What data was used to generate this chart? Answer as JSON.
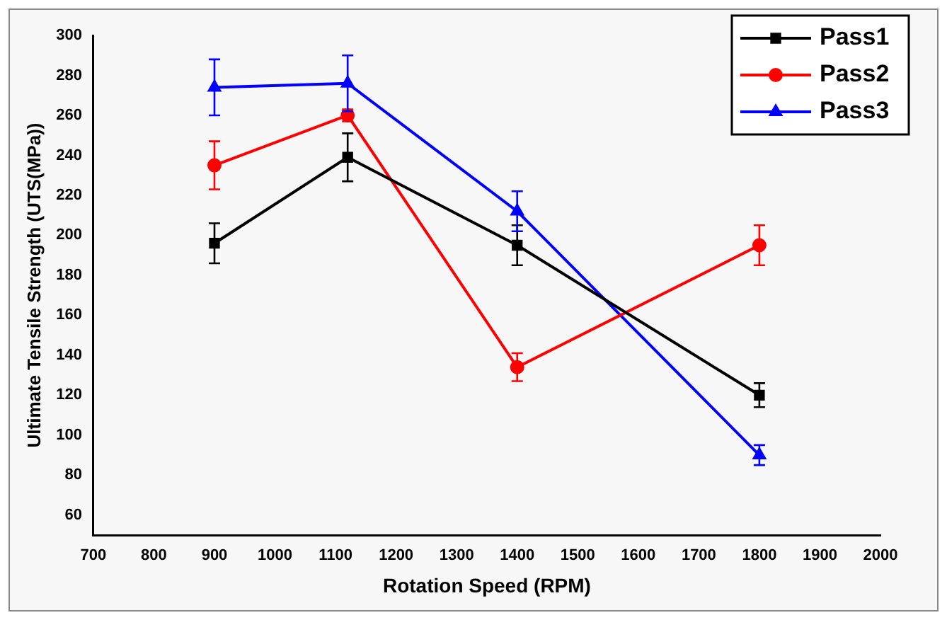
{
  "chart_data": {
    "type": "line",
    "xlabel": "Rotation Speed (RPM)",
    "ylabel": "Ultimate Tensile Strength (UTS(MPa))",
    "x": [
      900,
      1120,
      1400,
      1800
    ],
    "series": [
      {
        "name": "Pass1",
        "color": "#000000",
        "marker": "square",
        "values": [
          196,
          239,
          195,
          120
        ],
        "errors": [
          10,
          12,
          10,
          6
        ]
      },
      {
        "name": "Pass2",
        "color": "#ff0000",
        "marker": "circle",
        "values": [
          235,
          260,
          134,
          195
        ],
        "errors": [
          12,
          3,
          7,
          10
        ]
      },
      {
        "name": "Pass3",
        "color": "#0000ff",
        "marker": "triangle",
        "values": [
          274,
          276,
          212,
          90
        ],
        "errors": [
          14,
          14,
          10,
          5
        ]
      }
    ],
    "xlim": [
      700,
      2000
    ],
    "xticks": [
      700,
      800,
      900,
      1000,
      1100,
      1200,
      1300,
      1400,
      1500,
      1600,
      1700,
      1800,
      1900,
      2000
    ],
    "ylim": [
      50,
      300
    ],
    "yticks": [
      60,
      80,
      100,
      120,
      140,
      160,
      180,
      200,
      220,
      240,
      260,
      280,
      300
    ],
    "grid": false,
    "legend": "top right",
    "line_style": "solid"
  }
}
